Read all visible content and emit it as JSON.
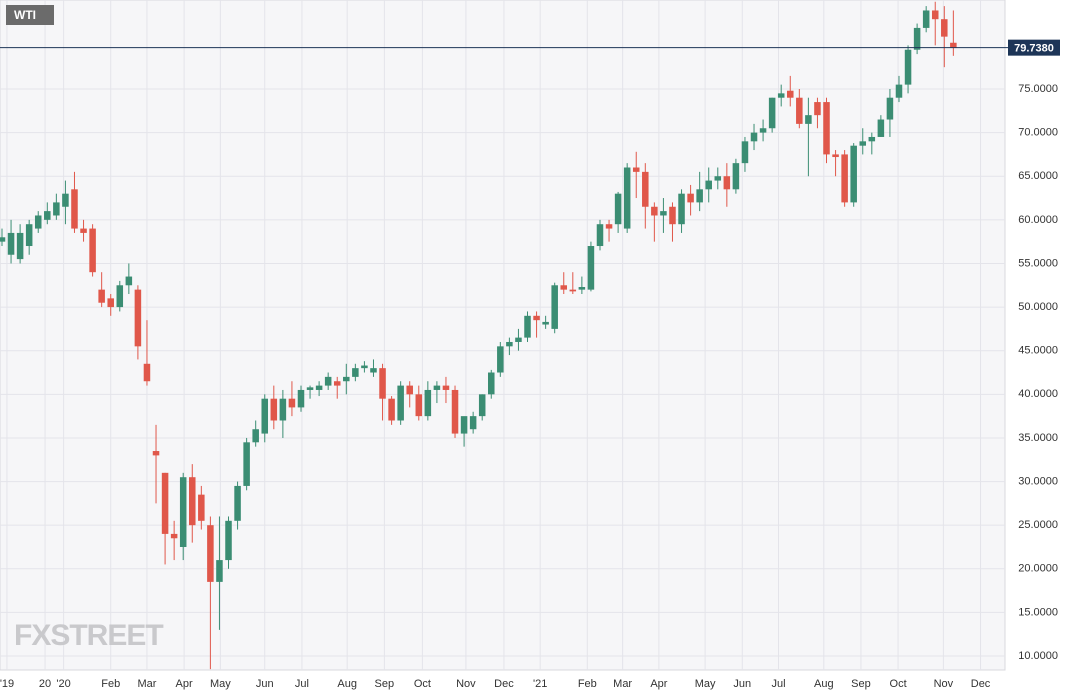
{
  "chart_data": {
    "type": "candlestick",
    "legend": "WTI",
    "watermark": "FXSTREET",
    "up_color": "#3b8d73",
    "down_color": "#e0574a",
    "grid": true,
    "open": [
      57.5,
      56,
      55.5,
      57,
      59,
      60,
      60.5,
      61.5,
      63.5,
      59,
      59,
      52,
      51,
      50,
      52.5,
      52,
      43.5,
      33.5,
      31,
      24,
      22.5,
      30.5,
      28.5,
      25,
      18.5,
      21,
      25.5,
      29.5,
      34.5,
      35.5,
      39.5,
      37,
      39.5,
      38.5,
      40.5,
      40.5,
      41,
      41.5,
      41.5,
      42,
      43,
      42.5,
      43,
      39.5,
      37,
      41,
      40,
      37.5,
      40.5,
      41,
      40.5,
      35.5,
      36,
      37.5,
      40,
      42.5,
      45.5,
      46,
      46.5,
      49,
      48,
      47.5,
      52.5,
      52,
      52,
      52,
      57,
      59.5,
      59.5,
      59,
      66,
      65.5,
      61.5,
      60.5,
      61.5,
      59.5,
      63,
      62,
      63.5,
      64.5,
      65,
      63.5,
      66.5,
      69,
      70,
      70.5,
      74,
      74.8,
      74,
      71,
      73.5,
      73.5,
      67.5,
      67.5,
      62,
      68.5,
      69,
      69.5,
      71.5,
      74,
      75.5,
      79.5,
      82,
      84,
      83,
      80.3
    ],
    "high": [
      59,
      60,
      59.5,
      60,
      61,
      62,
      63,
      64.5,
      65.5,
      60,
      59.5,
      54,
      51.5,
      53,
      55,
      52.5,
      48.5,
      36.5,
      31,
      25.5,
      31,
      32,
      29.5,
      26,
      26,
      26,
      30,
      35,
      37,
      40,
      41,
      40.5,
      41.5,
      41,
      41,
      41.5,
      42.5,
      42,
      43.5,
      43.5,
      43.8,
      44,
      43.5,
      39.8,
      41.5,
      41.5,
      41,
      41.5,
      41.5,
      42,
      41,
      37,
      38,
      40,
      42.8,
      46,
      46.5,
      47.5,
      49.5,
      49.5,
      49,
      52.8,
      54,
      54,
      53.5,
      57.5,
      60,
      60,
      63.2,
      66.5,
      67.8,
      66.5,
      62,
      62.5,
      62,
      63.5,
      64,
      65.5,
      66,
      66,
      66.5,
      67,
      69.5,
      71,
      71.5,
      74,
      75.5,
      76.5,
      75,
      74,
      74,
      74,
      68,
      68,
      68.8,
      70.5,
      70,
      72,
      75,
      76.5,
      80,
      82.5,
      84.5,
      85,
      84.5,
      84
    ],
    "low": [
      57,
      55,
      55,
      56,
      58.5,
      59.5,
      60,
      59.5,
      58.5,
      57.5,
      53.5,
      50,
      49,
      49.5,
      51.5,
      44,
      41,
      27.5,
      20.5,
      21,
      21,
      23,
      24.5,
      8.5,
      13,
      20,
      24.5,
      29,
      34,
      34.5,
      36,
      35,
      37.5,
      38,
      39.5,
      39.8,
      40.5,
      39.5,
      40,
      41.5,
      42.5,
      42,
      37,
      36.5,
      36.5,
      38.5,
      37,
      37,
      39,
      39,
      35,
      34,
      35.5,
      37,
      39.5,
      42,
      44.5,
      45,
      46,
      46.5,
      47.5,
      47,
      51.5,
      51.5,
      51.5,
      51.8,
      56.5,
      57.5,
      58.5,
      58.5,
      62.5,
      59,
      57.5,
      58.5,
      57.5,
      58.5,
      60.5,
      61,
      62,
      63.5,
      61.5,
      63,
      65.5,
      68,
      69,
      70,
      73,
      73,
      70.5,
      65,
      70.5,
      66.5,
      65,
      61.5,
      61.5,
      67.5,
      67.5,
      69.5,
      69.5,
      73.5,
      74.5,
      79,
      81.5,
      80,
      77.5,
      78.8
    ],
    "close": [
      58,
      58.5,
      58.5,
      59.5,
      60.5,
      61,
      62,
      63,
      59,
      58.5,
      54,
      50.5,
      50,
      52.5,
      53.5,
      45.5,
      41.5,
      33,
      24,
      23.5,
      30.5,
      25,
      25.5,
      18.5,
      21,
      25.5,
      29.5,
      34.5,
      36,
      39.5,
      37,
      39.5,
      38.5,
      40.5,
      40.8,
      41,
      42,
      41,
      42,
      43,
      43.3,
      43,
      39.5,
      37,
      41,
      40,
      37.5,
      40.5,
      41,
      40.5,
      35.5,
      37.5,
      37.5,
      40,
      42.5,
      45.5,
      46,
      46.5,
      49,
      48.5,
      48.3,
      52.5,
      52,
      51.8,
      52.3,
      57,
      59.5,
      59,
      63,
      66,
      65.5,
      61.5,
      60.5,
      61,
      59.5,
      63,
      62,
      63.5,
      64.5,
      65,
      63.5,
      66.5,
      69,
      70,
      70.5,
      74,
      74.5,
      74,
      71,
      72,
      72,
      67.5,
      67.2,
      62,
      68.5,
      69,
      69.5,
      71.5,
      74,
      75.5,
      79.5,
      82,
      84,
      83,
      81,
      79.7
    ],
    "ylim": [
      8.4,
      85.2
    ],
    "yticks": [
      {
        "value": 10,
        "label": "10.0000"
      },
      {
        "value": 15,
        "label": "15.0000"
      },
      {
        "value": 20,
        "label": "20.0000"
      },
      {
        "value": 25,
        "label": "25.0000"
      },
      {
        "value": 30,
        "label": "30.0000"
      },
      {
        "value": 35,
        "label": "35.0000"
      },
      {
        "value": 40,
        "label": "40.0000"
      },
      {
        "value": 45,
        "label": "45.0000"
      },
      {
        "value": 50,
        "label": "50.0000"
      },
      {
        "value": 55,
        "label": "55.0000"
      },
      {
        "value": 60,
        "label": "60.0000"
      },
      {
        "value": 65,
        "label": "65.0000"
      },
      {
        "value": 70,
        "label": "70.0000"
      },
      {
        "value": 75,
        "label": "75.0000"
      }
    ],
    "xlim": [
      -0.22,
      110.7
    ],
    "xticks": [
      {
        "value": 0.55,
        "label": "'19"
      },
      {
        "value": 4.75,
        "label": "20"
      },
      {
        "value": 6.8,
        "label": "'20"
      },
      {
        "value": 12.0,
        "label": "Feb"
      },
      {
        "value": 16.0,
        "label": "Mar"
      },
      {
        "value": 20.1,
        "label": "Apr"
      },
      {
        "value": 24.1,
        "label": "May"
      },
      {
        "value": 29.0,
        "label": "Jun"
      },
      {
        "value": 33.1,
        "label": "Jul"
      },
      {
        "value": 38.1,
        "label": "Aug"
      },
      {
        "value": 42.2,
        "label": "Sep"
      },
      {
        "value": 46.4,
        "label": "Oct"
      },
      {
        "value": 51.2,
        "label": "Nov"
      },
      {
        "value": 55.4,
        "label": "Dec"
      },
      {
        "value": 59.4,
        "label": "'21"
      },
      {
        "value": 64.6,
        "label": "Feb"
      },
      {
        "value": 68.5,
        "label": "Mar"
      },
      {
        "value": 72.5,
        "label": "Apr"
      },
      {
        "value": 77.6,
        "label": "May"
      },
      {
        "value": 81.7,
        "label": "Jun"
      },
      {
        "value": 85.7,
        "label": "Jul"
      },
      {
        "value": 90.7,
        "label": "Aug"
      },
      {
        "value": 94.8,
        "label": "Sep"
      },
      {
        "value": 98.9,
        "label": "Oct"
      },
      {
        "value": 103.9,
        "label": "Nov"
      },
      {
        "value": 108.0,
        "label": "Dec"
      }
    ],
    "last_price": {
      "value": 79.738,
      "label": "79.7380"
    }
  }
}
